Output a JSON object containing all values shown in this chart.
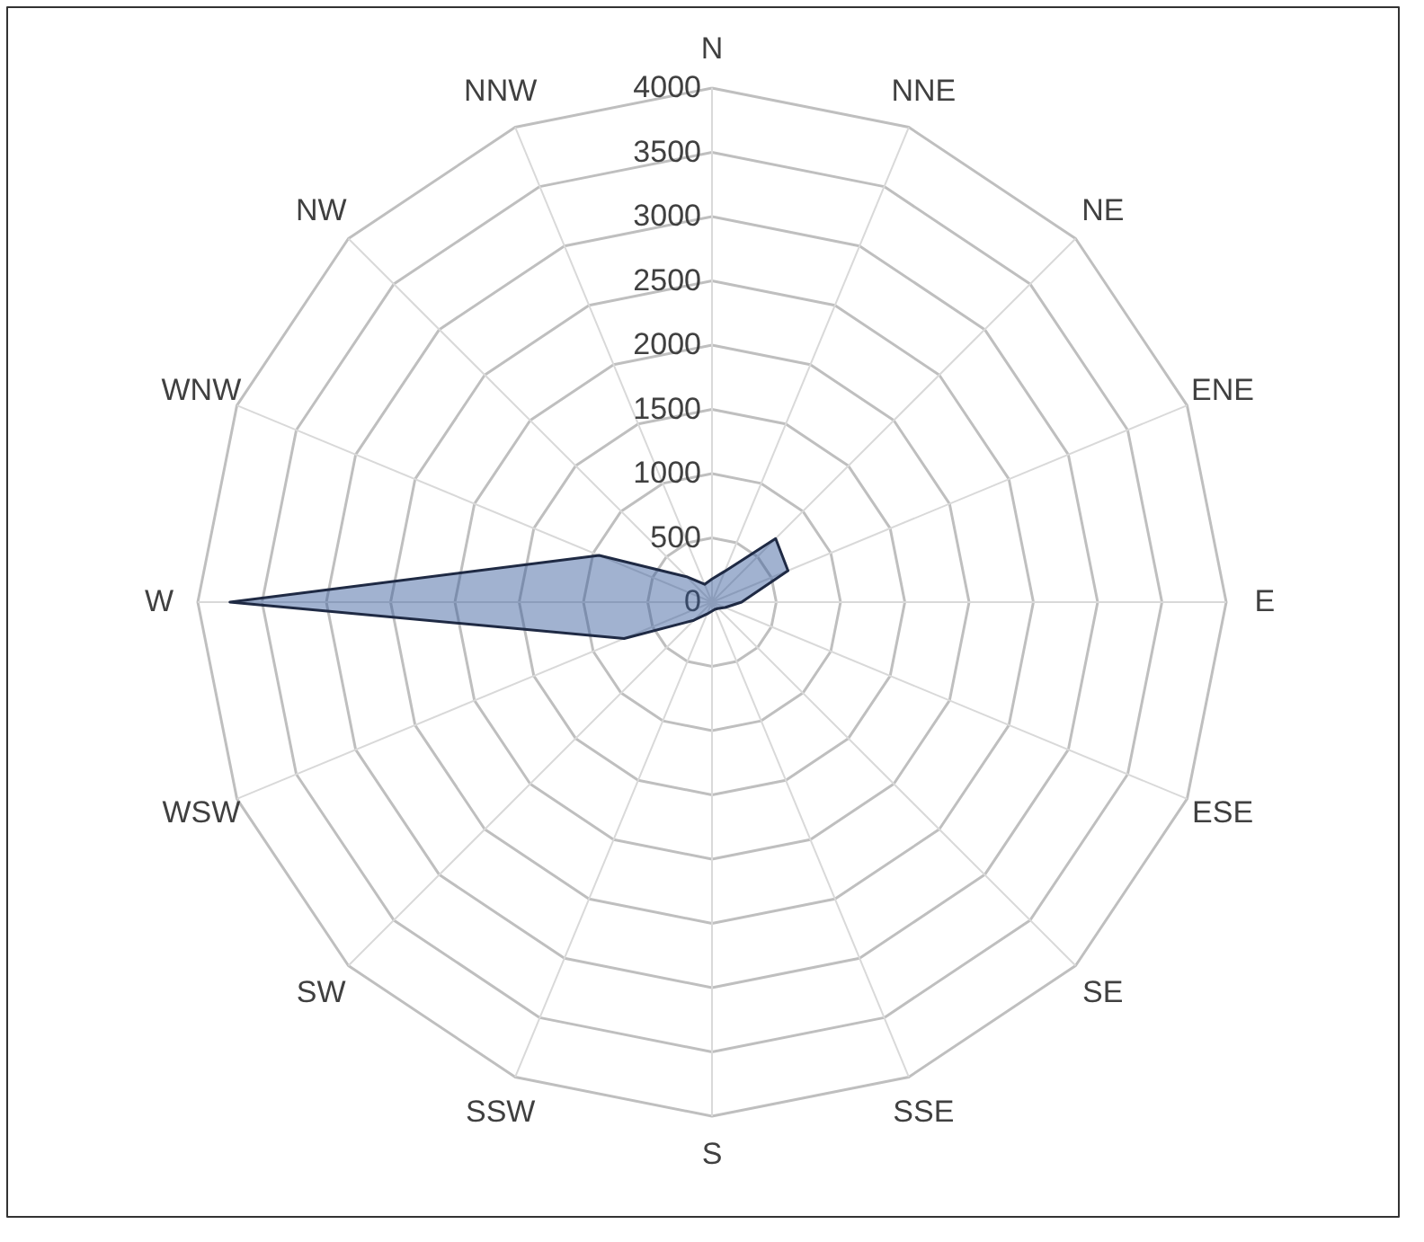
{
  "chart_data": {
    "type": "radar",
    "categories": [
      "N",
      "NNE",
      "NE",
      "ENE",
      "E",
      "ESE",
      "SE",
      "SSE",
      "S",
      "SSW",
      "SW",
      "WSW",
      "W",
      "WNW",
      "NW",
      "NNW"
    ],
    "series": [
      {
        "color": "#2f5597",
        "values": [
          180,
          260,
          700,
          640,
          230,
          110,
          70,
          60,
          70,
          100,
          200,
          740,
          3750,
          950,
          280,
          150
        ]
      }
    ],
    "ylim": [
      0,
      4000
    ],
    "yticks": [
      0,
      500,
      1000,
      1500,
      2000,
      2500,
      3000,
      3500,
      4000
    ],
    "grid": true
  }
}
